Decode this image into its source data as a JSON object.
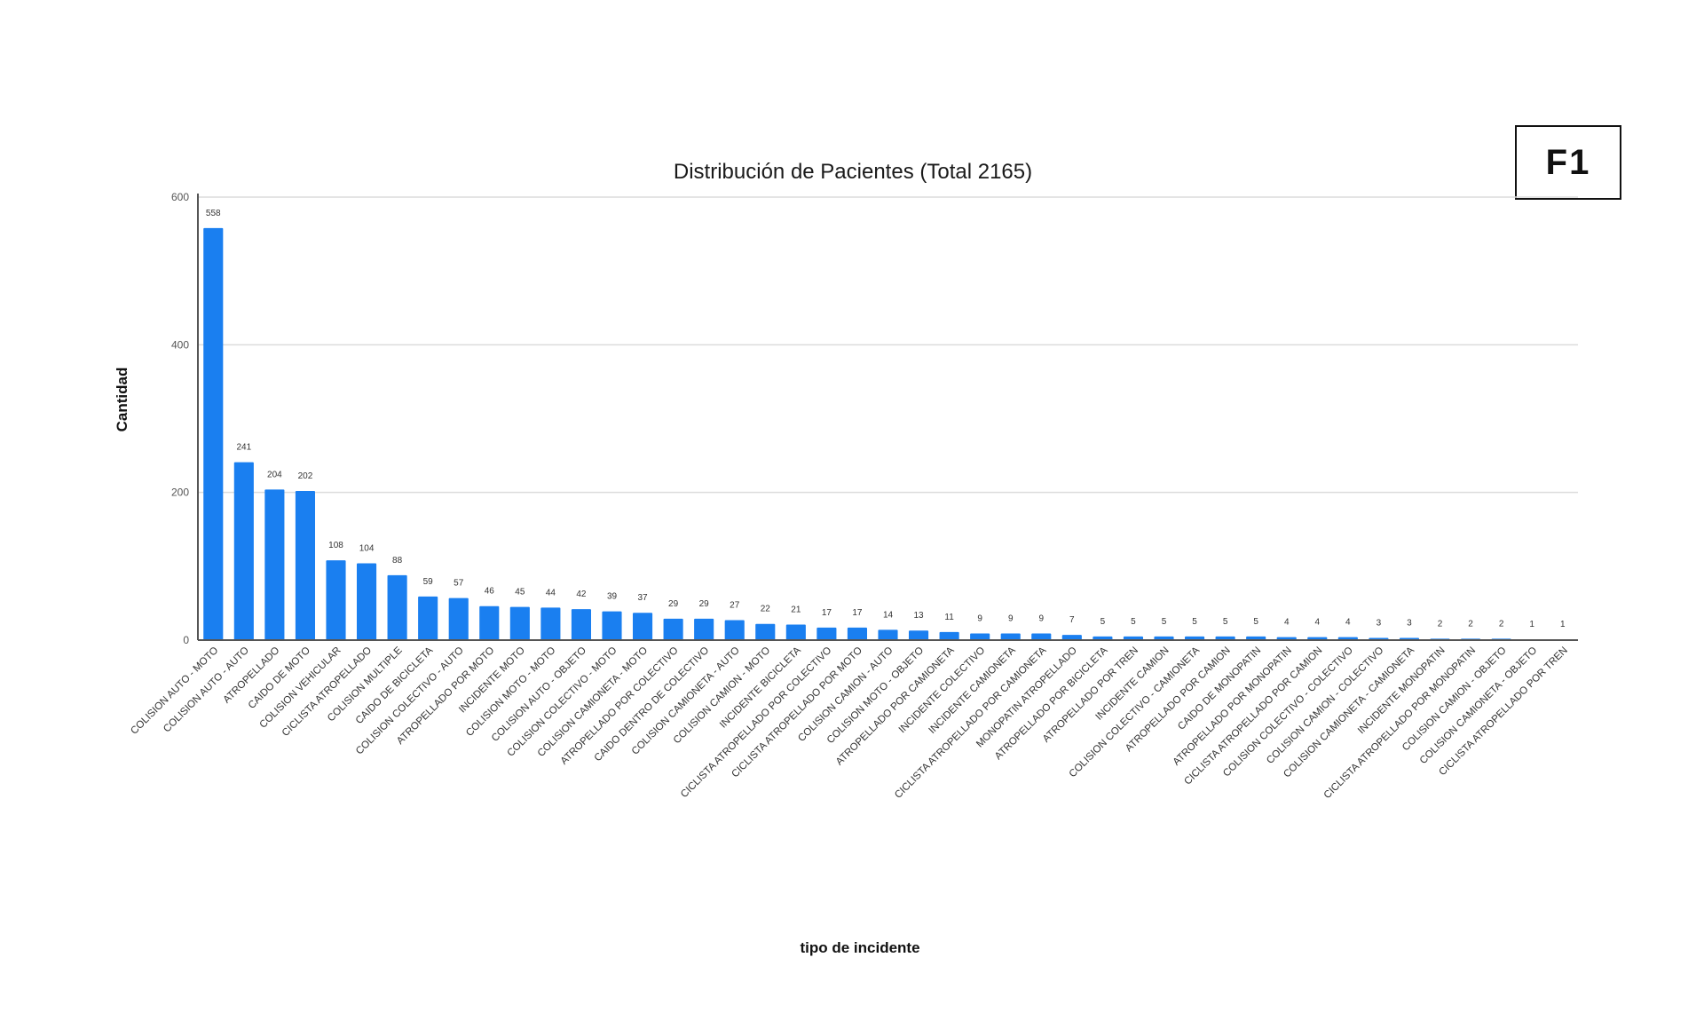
{
  "figure_badge": "F1",
  "chart_data": {
    "type": "bar",
    "title": "Distribución de Pacientes (Total 2165)",
    "xlabel": "tipo de incidente",
    "ylabel": "Cantidad",
    "ylim": [
      0,
      600
    ],
    "yticks": [
      0,
      200,
      400,
      600
    ],
    "grid": true,
    "legend": "none",
    "bar_color": "#1a7ff0",
    "categories": [
      "COLISION AUTO - MOTO",
      "COLISION AUTO - AUTO",
      "ATROPELLADO",
      "CAIDO DE MOTO",
      "COLISION VEHICULAR",
      "CICLISTA ATROPELLADO",
      "COLISION MULTIPLE",
      "CAIDO DE BICICLETA",
      "COLISION COLECTIVO - AUTO",
      "ATROPELLADO POR MOTO",
      "INCIDENTE MOTO",
      "COLISION MOTO - MOTO",
      "COLISION AUTO - OBJETO",
      "COLISION COLECTIVO - MOTO",
      "COLISION CAMIONETA - MOTO",
      "ATROPELLADO POR COLECTIVO",
      "CAIDO DENTRO DE COLECTIVO",
      "COLISION CAMIONETA - AUTO",
      "COLISION CAMION - MOTO",
      "INCIDENTE BICICLETA",
      "CICLISTA ATROPELLADO POR COLECTIVO",
      "CICLISTA ATROPELLADO POR MOTO",
      "COLISION CAMION - AUTO",
      "COLISION MOTO - OBJETO",
      "ATROPELLADO POR CAMIONETA",
      "INCIDENTE COLECTIVO",
      "INCIDENTE CAMIONETA",
      "CICLISTA ATROPELLADO POR CAMIONETA",
      "MONOPATIN ATROPELLADO",
      "ATROPELLADO POR BICICLETA",
      "ATROPELLADO POR TREN",
      "INCIDENTE CAMION",
      "COLISION COLECTIVO - CAMIONETA",
      "ATROPELLADO POR CAMION",
      "CAIDO DE MONOPATIN",
      "ATROPELLADO POR MONOPATIN",
      "CICLISTA ATROPELLADO POR CAMION",
      "COLISION COLECTIVO - COLECTIVO",
      "COLISION CAMION - COLECTIVO",
      "COLISION CAMIONETA - CAMIONETA",
      "INCIDENTE MONOPATIN",
      "CICLISTA ATROPELLADO POR MONOPATIN",
      "COLISION CAMION - OBJETO",
      "COLISION CAMIONETA - OBJETO",
      "CICLISTA ATROPELLADO POR TREN"
    ],
    "values": [
      558,
      241,
      204,
      202,
      108,
      104,
      88,
      59,
      57,
      46,
      45,
      44,
      42,
      39,
      37,
      29,
      29,
      27,
      22,
      21,
      17,
      17,
      14,
      13,
      11,
      9,
      9,
      9,
      7,
      5,
      5,
      5,
      5,
      5,
      5,
      4,
      4,
      4,
      3,
      3,
      2,
      2,
      2,
      1,
      1
    ]
  }
}
